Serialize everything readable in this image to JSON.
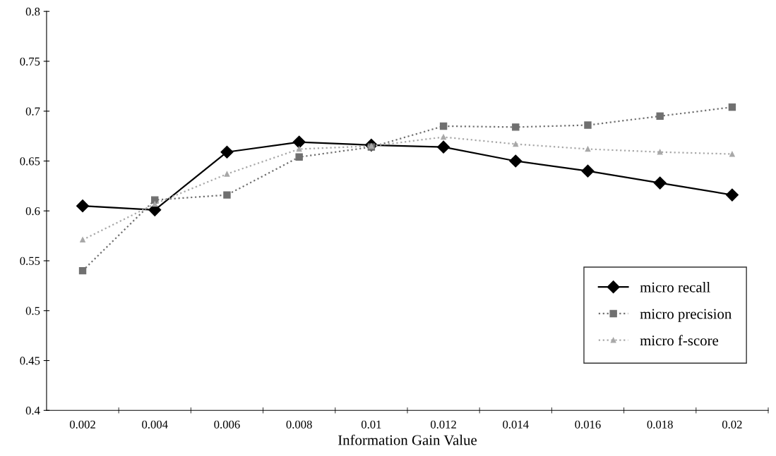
{
  "chart_data": {
    "type": "line",
    "xlabel": "Information Gain Value",
    "categories": [
      "0.002",
      "0.004",
      "0.006",
      "0.008",
      "0.01",
      "0.012",
      "0.014",
      "0.016",
      "0.018",
      "0.02"
    ],
    "series": [
      {
        "name": "micro recall",
        "color": "#000000",
        "marker": "diamond",
        "line_style": "solid",
        "values": [
          0.605,
          0.601,
          0.659,
          0.669,
          0.666,
          0.664,
          0.65,
          0.64,
          0.628,
          0.616
        ]
      },
      {
        "name": "micro precision",
        "color": "#707070",
        "marker": "square",
        "line_style": "dotted",
        "values": [
          0.54,
          0.611,
          0.616,
          0.654,
          0.664,
          0.685,
          0.684,
          0.686,
          0.695,
          0.704
        ]
      },
      {
        "name": "micro f-score",
        "color": "#a8a8a8",
        "marker": "triangle",
        "line_style": "dotted",
        "values": [
          0.571,
          0.607,
          0.637,
          0.662,
          0.665,
          0.674,
          0.667,
          0.662,
          0.659,
          0.657
        ]
      }
    ],
    "ylim": [
      0.4,
      0.8
    ],
    "yticks": [
      0.4,
      0.45,
      0.5,
      0.55,
      0.6,
      0.65,
      0.7,
      0.75,
      0.8
    ],
    "grid": false,
    "legend": "bottom right"
  }
}
